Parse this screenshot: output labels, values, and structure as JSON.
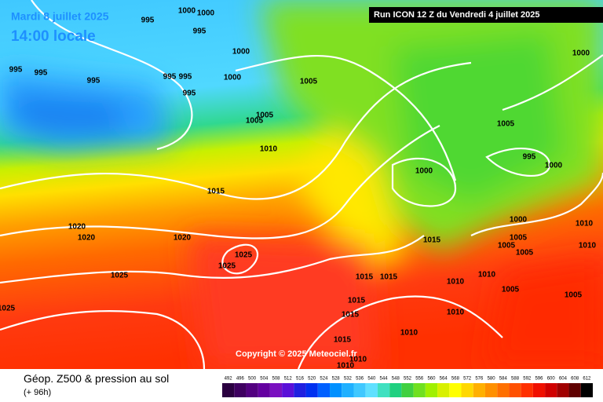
{
  "map": {
    "valid_date": "Mardi 8 juillet 2025",
    "local_time": "14:00 locale",
    "run_info": "Run ICON 12 Z du Vendredi 4 juillet 2025",
    "copyright": "Copyright © 2025 Meteociel.fr",
    "isobar_labels": [
      "995",
      "1000",
      "1000",
      "995",
      "995",
      "995",
      "995",
      "995",
      "995",
      "995",
      "1000",
      "1000",
      "1005",
      "1005",
      "1005",
      "1010",
      "1015",
      "1020",
      "1020",
      "1020",
      "1025",
      "1025",
      "1025",
      "1025",
      "1000",
      "995",
      "1000",
      "1005",
      "1000",
      "1000",
      "1005",
      "1005",
      "1005",
      "1010",
      "1010",
      "1015",
      "1015",
      "1015",
      "1010",
      "1015",
      "1015",
      "1015",
      "1010",
      "1010",
      "1005",
      "1005",
      "1010",
      "1010",
      "1010"
    ]
  },
  "footer": {
    "title": "Géop. Z500 & pression au sol",
    "lead_time": "(+ 96h)"
  },
  "legend": {
    "labels": [
      "492",
      "496",
      "500",
      "504",
      "508",
      "512",
      "516",
      "520",
      "524",
      "528",
      "532",
      "536",
      "540",
      "544",
      "548",
      "552",
      "556",
      "560",
      "564",
      "568",
      "572",
      "576",
      "580",
      "584",
      "588",
      "592",
      "596",
      "600",
      "604",
      "608",
      "612"
    ],
    "colors": [
      "#2a0040",
      "#3e0060",
      "#520080",
      "#6400a0",
      "#7a10c0",
      "#5a10d8",
      "#2020e0",
      "#0030f0",
      "#0060ff",
      "#0090ff",
      "#20b0ff",
      "#40c8ff",
      "#60e0ff",
      "#40e0c0",
      "#20d080",
      "#40d040",
      "#70e020",
      "#a0f000",
      "#d8f000",
      "#ffff00",
      "#ffd800",
      "#ffb000",
      "#ff9000",
      "#ff7000",
      "#ff5000",
      "#ff3000",
      "#f01000",
      "#d00000",
      "#a00000",
      "#600000",
      "#000000"
    ]
  }
}
